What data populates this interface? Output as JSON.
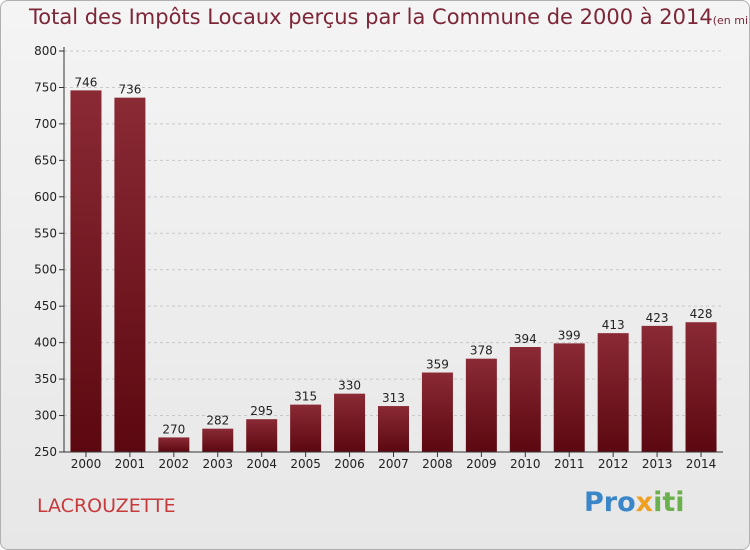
{
  "title": "Total des Impôts Locaux perçus par la Commune de 2000 à 2014",
  "subtitle": "(en milliers d'€)",
  "commune": "LACROUZETTE",
  "logo": {
    "parts": [
      "Pro",
      "x",
      "iti"
    ],
    "colors": [
      "#3a86c8",
      "#f0a020",
      "#6ab04c"
    ]
  },
  "colors": {
    "bar": "#6e1220",
    "bar_light": "#8a2a35",
    "title": "#7c2638",
    "commune": "#c8393a"
  },
  "chart_data": {
    "type": "bar",
    "categories": [
      "2000",
      "2001",
      "2002",
      "2003",
      "2004",
      "2005",
      "2006",
      "2007",
      "2008",
      "2009",
      "2010",
      "2011",
      "2012",
      "2013",
      "2014"
    ],
    "values": [
      746,
      736,
      270,
      282,
      295,
      315,
      330,
      313,
      359,
      378,
      394,
      399,
      413,
      423,
      428
    ],
    "title": "Total des Impôts Locaux perçus par la Commune de 2000 à 2014",
    "ylim": [
      250,
      800
    ],
    "yticks": [
      250,
      300,
      350,
      400,
      450,
      500,
      550,
      600,
      650,
      700,
      750,
      800
    ],
    "grid": true,
    "data_labels": true
  }
}
